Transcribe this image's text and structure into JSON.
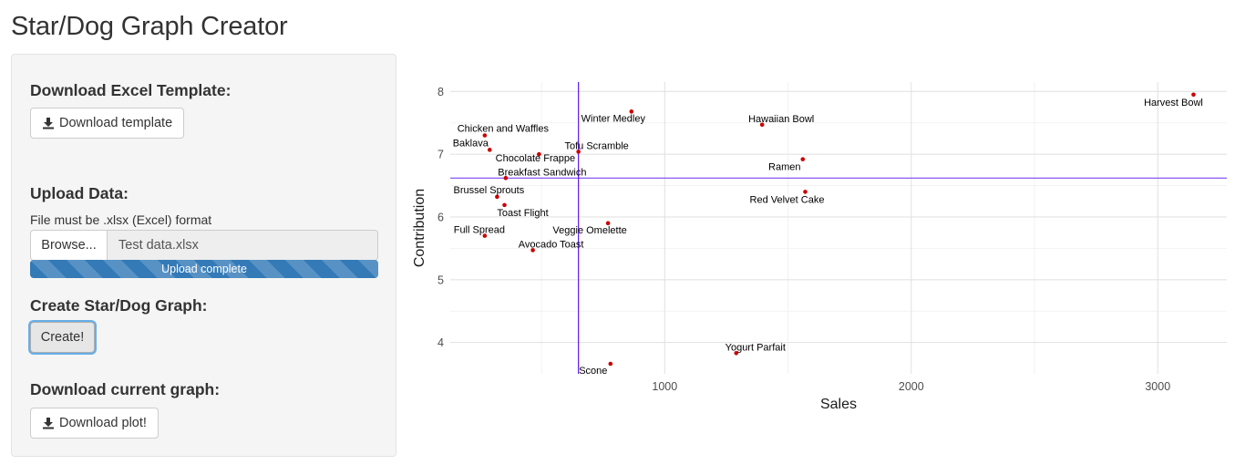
{
  "app": {
    "title": "Star/Dog Graph Creator"
  },
  "sidebar": {
    "download_template": {
      "heading": "Download Excel Template:",
      "button_label": "Download template",
      "icon": "download-icon"
    },
    "upload": {
      "heading": "Upload Data:",
      "help_text": "File must be .xlsx (Excel) format",
      "browse_label": "Browse...",
      "file_name": "Test data.xlsx",
      "progress_label": "Upload complete",
      "progress": 1.0
    },
    "create": {
      "heading": "Create Star/Dog Graph:",
      "button_label": "Create!"
    },
    "download_plot": {
      "heading": "Download current graph:",
      "button_label": "Download plot!",
      "icon": "download-icon"
    }
  },
  "colors": {
    "point": "#cc0000",
    "reference_line": "#5e17eb",
    "accent": "#337ab7"
  },
  "chart_data": {
    "type": "scatter",
    "xlabel": "Sales",
    "ylabel": "Contribution",
    "xlim": [
      130,
      3280
    ],
    "ylim": [
      3.5,
      8.15
    ],
    "x_ticks": [
      1000,
      2000,
      3000
    ],
    "y_ticks": [
      4,
      5,
      6,
      7,
      8
    ],
    "grid": true,
    "reference_lines": {
      "x": 650,
      "y": 6.62
    },
    "points": [
      {
        "label": "Harvest Bowl",
        "x": 3145,
        "y": 7.95
      },
      {
        "label": "Winter Medley",
        "x": 865,
        "y": 7.68
      },
      {
        "label": "Hawaiian Bowl",
        "x": 1395,
        "y": 7.47
      },
      {
        "label": "Chicken and Waffles",
        "x": 270,
        "y": 7.3
      },
      {
        "label": "Baklava",
        "x": 290,
        "y": 7.07
      },
      {
        "label": "Tofu Scramble",
        "x": 650,
        "y": 7.04
      },
      {
        "label": "Chocolate Frappe",
        "x": 490,
        "y": 7.0
      },
      {
        "label": "Ramen",
        "x": 1560,
        "y": 6.92
      },
      {
        "label": "Breakfast Sandwich",
        "x": 355,
        "y": 6.62
      },
      {
        "label": "Red Velvet Cake",
        "x": 1570,
        "y": 6.4
      },
      {
        "label": "Brussel Sprouts",
        "x": 320,
        "y": 6.32
      },
      {
        "label": "Toast Flight",
        "x": 350,
        "y": 6.19
      },
      {
        "label": "Veggie Omelette",
        "x": 770,
        "y": 5.9
      },
      {
        "label": "Full Spread",
        "x": 270,
        "y": 5.7
      },
      {
        "label": "Avocado Toast",
        "x": 465,
        "y": 5.47
      },
      {
        "label": "Yogurt Parfait",
        "x": 1290,
        "y": 3.83
      },
      {
        "label": "Scone",
        "x": 780,
        "y": 3.66
      }
    ]
  }
}
